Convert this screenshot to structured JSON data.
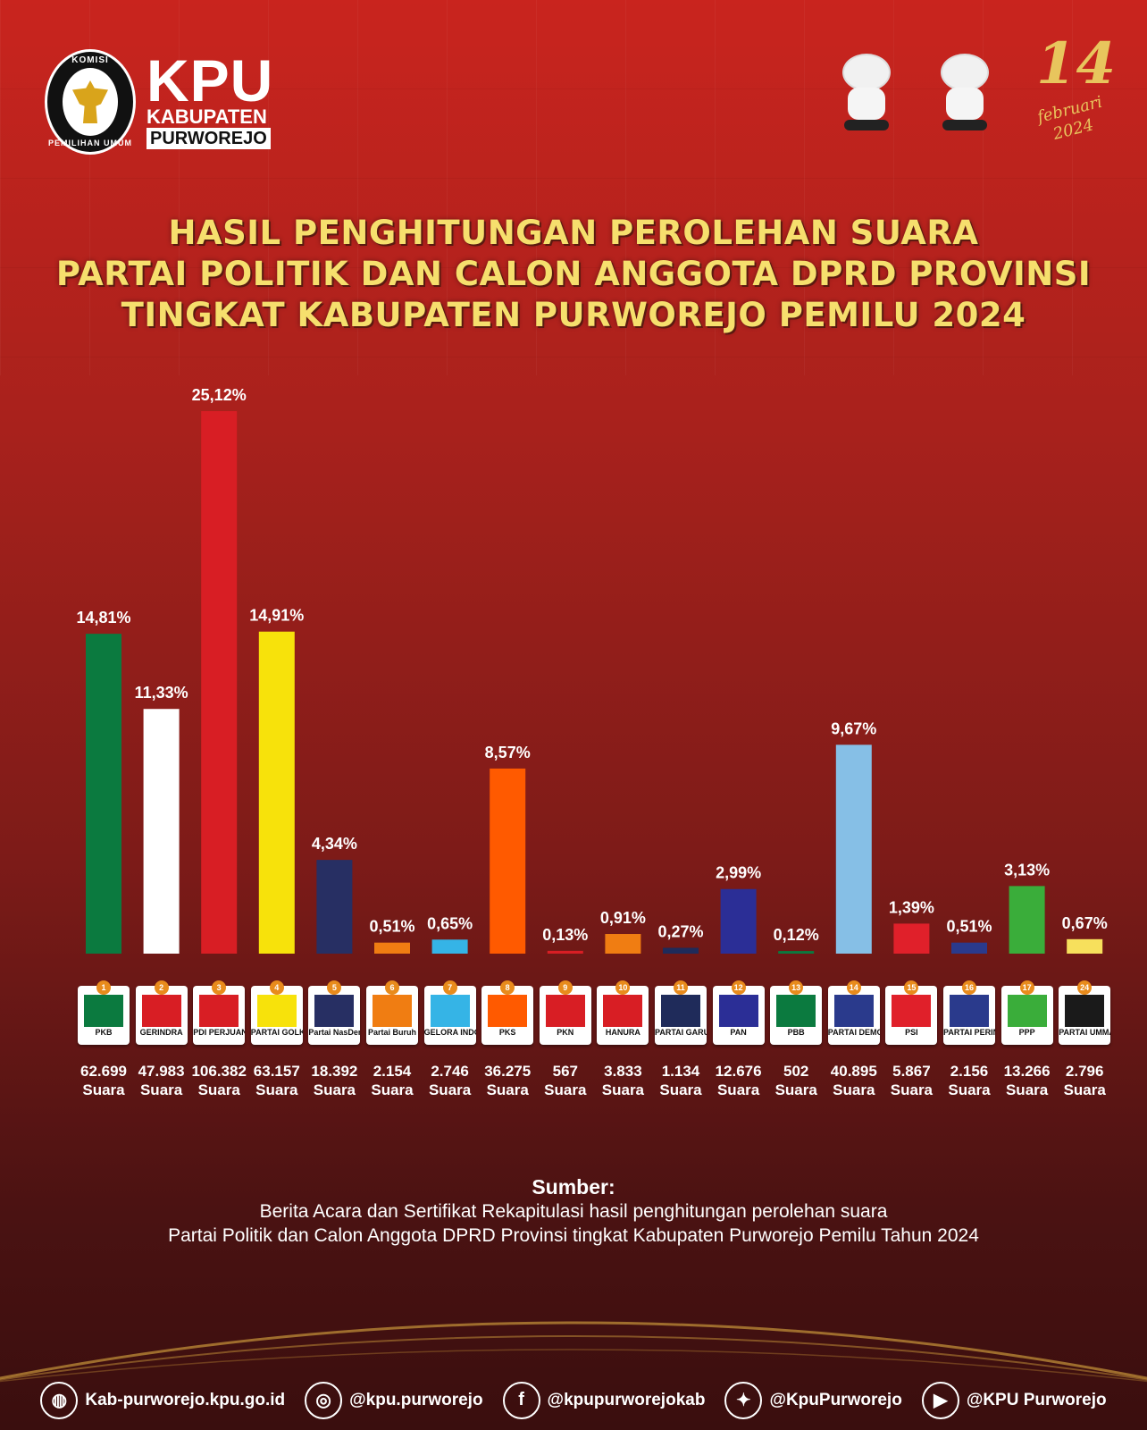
{
  "header": {
    "seal_top": "KOMISI",
    "seal_bottom": "PEMILIHAN UMUM",
    "kpu": "KPU",
    "kabupaten": "KABUPATEN",
    "purworejo": "PURWOREJO",
    "date_num": "14",
    "date_month": "februari",
    "date_year": "2024"
  },
  "title": {
    "line1": "HASIL PENGHITUNGAN PEROLEHAN SUARA",
    "line2": "PARTAI POLITIK DAN CALON ANGGOTA DPRD PROVINSI",
    "line3": "TINGKAT KABUPATEN PURWOREJO PEMILU 2024"
  },
  "chart_data": {
    "type": "bar",
    "categories": [
      "PKB",
      "GERINDRA",
      "PDI PERJUANGAN",
      "PARTAI GOLKAR",
      "Partai NasDem",
      "Partai Buruh",
      "GELORA INDONESIA",
      "PKS",
      "PKN",
      "HANURA",
      "PARTAI GARUDA",
      "PAN",
      "PBB",
      "PARTAI DEMOKRAT",
      "PSI",
      "PARTAI PERINDO",
      "PPP",
      "PARTAI UMMAT"
    ],
    "party_numbers": [
      "1",
      "2",
      "3",
      "4",
      "5",
      "6",
      "7",
      "8",
      "9",
      "10",
      "11",
      "12",
      "13",
      "14",
      "15",
      "16",
      "17",
      "24"
    ],
    "values": [
      14.81,
      11.33,
      25.12,
      14.91,
      4.34,
      0.51,
      0.65,
      8.57,
      0.13,
      0.91,
      0.27,
      2.99,
      0.12,
      9.67,
      1.39,
      0.51,
      3.13,
      0.67
    ],
    "value_labels": [
      "14,81%",
      "11,33%",
      "25,12%",
      "14,91%",
      "4,34%",
      "0,51%",
      "0,65%",
      "8,57%",
      "0,13%",
      "0,91%",
      "0,27%",
      "2,99%",
      "0,12%",
      "9,67%",
      "1,39%",
      "0,51%",
      "3,13%",
      "0,67%"
    ],
    "votes": [
      "62.699",
      "47.983",
      "106.382",
      "63.157",
      "18.392",
      "2.154",
      "2.746",
      "36.275",
      "567",
      "3.833",
      "1.134",
      "12.676",
      "502",
      "40.895",
      "5.867",
      "2.156",
      "13.266",
      "2.796"
    ],
    "votes_unit": "Suara",
    "colors": [
      "#0b7a3f",
      "#ffffff",
      "#d81e24",
      "#f7e20b",
      "#272f63",
      "#f07d12",
      "#35b4e6",
      "#ff5a00",
      "#d81e24",
      "#f07d12",
      "#1f2b5a",
      "#2b2e96",
      "#0b7a3f",
      "#86bfe6",
      "#e0202a",
      "#2a3a8c",
      "#3aad3a",
      "#f7e05c"
    ],
    "logo_colors": [
      "#0b7a3f",
      "#d81e24",
      "#d81e24",
      "#f7e20b",
      "#272f63",
      "#f07d12",
      "#35b4e6",
      "#ff5a00",
      "#d81e24",
      "#d81e24",
      "#1f2b5a",
      "#2b2e96",
      "#0b7a3f",
      "#2a3a8c",
      "#e0202a",
      "#2a3a8c",
      "#3aad3a",
      "#1a1a1a"
    ],
    "ylim": [
      0,
      25.12
    ]
  },
  "source": {
    "head": "Sumber:",
    "line1": "Berita Acara dan Sertifikat Rekapitulasi hasil penghitungan perolehan suara",
    "line2": "Partai Politik dan Calon Anggota DPRD Provinsi tingkat Kabupaten Purworejo Pemilu Tahun 2024"
  },
  "footer": [
    {
      "icon": "globe-icon",
      "glyph": "◍",
      "text": "Kab-purworejo.kpu.go.id"
    },
    {
      "icon": "instagram-icon",
      "glyph": "◎",
      "text": "@kpu.purworejo"
    },
    {
      "icon": "facebook-icon",
      "glyph": "f",
      "text": "@kpupurworejokab"
    },
    {
      "icon": "twitter-icon",
      "glyph": "✦",
      "text": "@KpuPurworejo"
    },
    {
      "icon": "youtube-icon",
      "glyph": "▶",
      "text": "@KPU Purworejo"
    }
  ]
}
